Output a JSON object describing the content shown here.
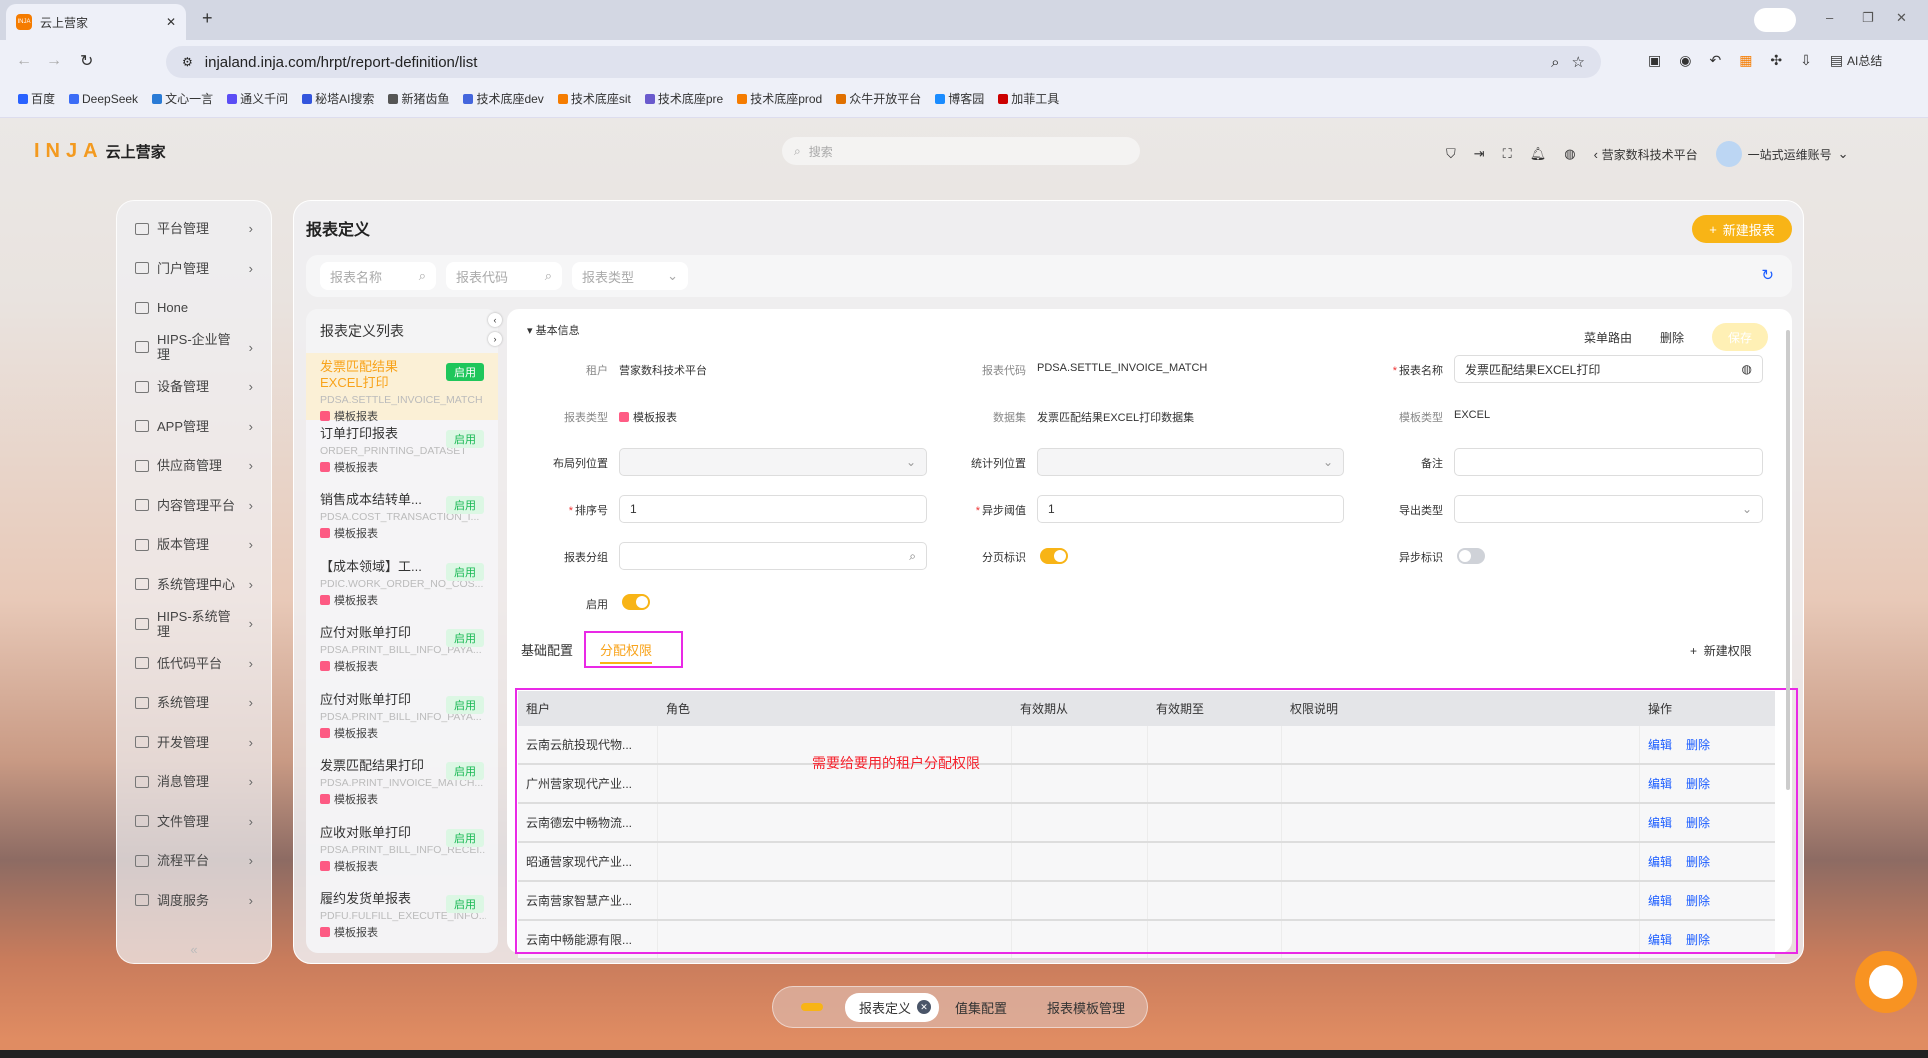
{
  "browser": {
    "tab_title": "云上营家",
    "url": "injaland.inja.com/hrpt/report-definition/list",
    "ai_label": "AI总结",
    "bookmarks": [
      "百度",
      "DeepSeek",
      "文心一言",
      "通义千问",
      "秘塔AI搜索",
      "新猪齿鱼",
      "技术底座dev",
      "技术底座sit",
      "技术底座pre",
      "技术底座prod",
      "众牛开放平台",
      "博客园",
      "加菲工具"
    ]
  },
  "header": {
    "logo_text": "INJA",
    "logo_sub": "云上营家",
    "search_placeholder": "搜索",
    "platform": "营家数科技术平台",
    "user": "一站式运维账号"
  },
  "sidebar": {
    "items": [
      {
        "label": "平台管理",
        "icon": "code-window-icon"
      },
      {
        "label": "门户管理",
        "icon": "grid-icon"
      },
      {
        "label": "Hone",
        "icon": "cloud-icon"
      },
      {
        "label": "HIPS-企业管理",
        "icon": "building-icon"
      },
      {
        "label": "设备管理",
        "icon": "gear-icon"
      },
      {
        "label": "APP管理",
        "icon": "tablet-icon"
      },
      {
        "label": "供应商管理",
        "icon": "supplier-icon"
      },
      {
        "label": "内容管理平台",
        "icon": "code-window-icon"
      },
      {
        "label": "版本管理",
        "icon": "version-icon"
      },
      {
        "label": "系统管理中心",
        "icon": "code-window-icon"
      },
      {
        "label": "HIPS-系统管理",
        "icon": "eye-icon"
      },
      {
        "label": "低代码平台",
        "icon": "code-window-icon"
      },
      {
        "label": "系统管理",
        "icon": "cloud-icon"
      },
      {
        "label": "开发管理",
        "icon": "code-window-icon"
      },
      {
        "label": "消息管理",
        "icon": "mail-icon"
      },
      {
        "label": "文件管理",
        "icon": "folder-icon"
      },
      {
        "label": "流程平台",
        "icon": "flow-icon"
      },
      {
        "label": "调度服务",
        "icon": "schedule-icon"
      }
    ],
    "collapse": "«"
  },
  "page": {
    "title": "报表定义",
    "new_button": "新建报表",
    "filters": {
      "name_placeholder": "报表名称",
      "code_placeholder": "报表代码",
      "type_placeholder": "报表类型"
    }
  },
  "list": {
    "title": "报表定义列表",
    "items": [
      {
        "name": "发票匹配结果EXCEL打印",
        "code": "PDSA.SETTLE_INVOICE_MATCH",
        "type": "模板报表",
        "status": "启用"
      },
      {
        "name": "订单打印报表",
        "code": "ORDER_PRINTING_DATASET",
        "type": "模板报表",
        "status": "启用"
      },
      {
        "name": "销售成本结转单...",
        "code": "PDSA.COST_TRANSACTION_I...",
        "type": "模板报表",
        "status": "启用"
      },
      {
        "name": "【成本领域】工...",
        "code": "PDIC.WORK_ORDER_NO_COS...",
        "type": "模板报表",
        "status": "启用"
      },
      {
        "name": "应付对账单打印",
        "code": "PDSA.PRINT_BILL_INFO_PAYA...",
        "type": "模板报表",
        "status": "启用"
      },
      {
        "name": "应付对账单打印",
        "code": "PDSA.PRINT_BILL_INFO_PAYA...",
        "type": "模板报表",
        "status": "启用"
      },
      {
        "name": "发票匹配结果打印",
        "code": "PDSA.PRINT_INVOICE_MATCH...",
        "type": "模板报表",
        "status": "启用"
      },
      {
        "name": "应收对账单打印",
        "code": "PDSA.PRINT_BILL_INFO_RECEI...",
        "type": "模板报表",
        "status": "启用"
      },
      {
        "name": "履约发货单报表",
        "code": "PDFU.FULFILL_EXECUTE_INFO...",
        "type": "模板报表",
        "status": "启用"
      }
    ]
  },
  "detail": {
    "section": "基本信息",
    "actions": {
      "menu_route": "菜单路由",
      "delete": "删除",
      "save": "保存"
    },
    "fields": {
      "tenant_label": "租户",
      "tenant": "营家数科技术平台",
      "code_label": "报表代码",
      "code": "PDSA.SETTLE_INVOICE_MATCH",
      "name_label": "报表名称",
      "name": "发票匹配结果EXCEL打印",
      "type_label": "报表类型",
      "type": "模板报表",
      "dataset_label": "数据集",
      "dataset": "发票匹配结果EXCEL打印数据集",
      "tpl_type_label": "模板类型",
      "tpl_type": "EXCEL",
      "layout_col_label": "布局列位置",
      "stat_col_label": "统计列位置",
      "remark_label": "备注",
      "sort_label": "排序号",
      "sort": "1",
      "async_threshold_label": "异步阈值",
      "async_threshold": "1",
      "export_type_label": "导出类型",
      "group_label": "报表分组",
      "paging_label": "分页标识",
      "paging": true,
      "async_label": "异步标识",
      "async": false,
      "enabled_label": "启用",
      "enabled": true
    },
    "tabs": [
      "基础配置",
      "分配权限"
    ],
    "active_tab": "分配权限",
    "new_permission": "新建权限",
    "table": {
      "headers": [
        "租户",
        "角色",
        "有效期从",
        "有效期至",
        "权限说明",
        "操作"
      ],
      "rows": [
        {
          "tenant": "云南云航投现代物..."
        },
        {
          "tenant": "广州营家现代产业..."
        },
        {
          "tenant": "云南德宏中畅物流..."
        },
        {
          "tenant": "昭通营家现代产业..."
        },
        {
          "tenant": "云南营家智慧产业..."
        },
        {
          "tenant": "云南中畅能源有限..."
        }
      ],
      "edit": "编辑",
      "delete": "删除"
    },
    "annotation": "需要给要用的租户分配权限"
  },
  "bottom_tabs": [
    "报表定义",
    "值集配置",
    "报表模板管理"
  ],
  "colors": {
    "accent": "#f8b416",
    "highlight": "#e929e6",
    "link": "#1a5cff",
    "annotation": "#f5222d",
    "enabled_badge": "#1fc65b"
  }
}
